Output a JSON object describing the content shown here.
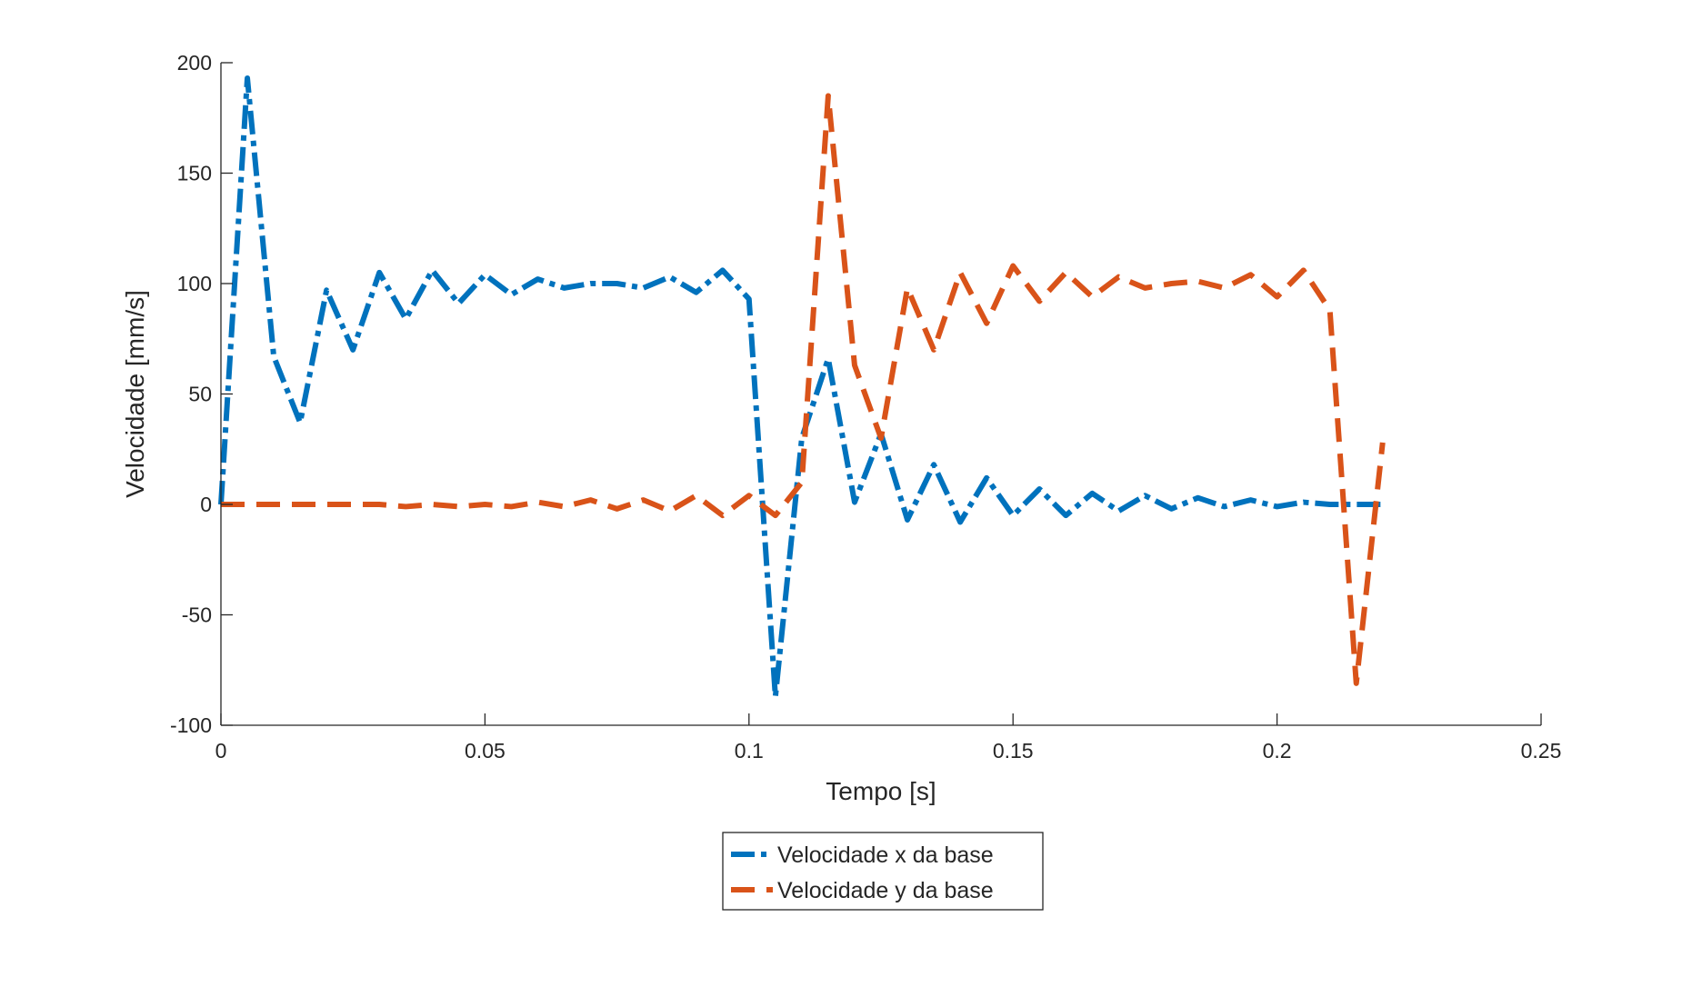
{
  "chart_data": {
    "type": "line",
    "xlabel": "Tempo [s]",
    "ylabel": "Velocidade [mm/s]",
    "xlim": [
      0,
      0.25
    ],
    "ylim": [
      -100,
      200
    ],
    "xticks": [
      0,
      0.05,
      0.1,
      0.15,
      0.2,
      0.25
    ],
    "xtick_labels": [
      "0",
      "0.05",
      "0.1",
      "0.15",
      "0.2",
      "0.25"
    ],
    "yticks": [
      -100,
      -50,
      0,
      50,
      100,
      150,
      200
    ],
    "ytick_labels": [
      "-100",
      "-50",
      "0",
      "50",
      "100",
      "150",
      "200"
    ],
    "grid": false,
    "legend_position": "bottom-center-outside",
    "series": [
      {
        "name": "Velocidade x da base",
        "color": "#0072BD",
        "line_style": "dash-dot",
        "x": [
          0,
          0.005,
          0.01,
          0.015,
          0.02,
          0.025,
          0.03,
          0.035,
          0.04,
          0.045,
          0.05,
          0.055,
          0.06,
          0.065,
          0.07,
          0.075,
          0.08,
          0.085,
          0.09,
          0.095,
          0.1,
          0.105,
          0.11,
          0.115,
          0.12,
          0.125,
          0.13,
          0.135,
          0.14,
          0.145,
          0.15,
          0.155,
          0.16,
          0.165,
          0.17,
          0.175,
          0.18,
          0.185,
          0.19,
          0.195,
          0.2,
          0.205,
          0.21,
          0.215,
          0.22
        ],
        "y": [
          0,
          193,
          67,
          37,
          97,
          70,
          105,
          84,
          106,
          91,
          104,
          95,
          102,
          98,
          100,
          100,
          98,
          103,
          96,
          106,
          93,
          -87,
          30,
          66,
          1,
          32,
          -7,
          18,
          -8,
          12,
          -5,
          7,
          -5,
          5,
          -3,
          4,
          -2,
          3,
          -1,
          2,
          -1,
          1,
          0,
          0,
          0
        ]
      },
      {
        "name": "Velocidade y da base",
        "color": "#D95319",
        "line_style": "dashed",
        "x": [
          0,
          0.005,
          0.01,
          0.015,
          0.02,
          0.025,
          0.03,
          0.035,
          0.04,
          0.045,
          0.05,
          0.055,
          0.06,
          0.065,
          0.07,
          0.075,
          0.08,
          0.085,
          0.09,
          0.095,
          0.1,
          0.105,
          0.11,
          0.115,
          0.12,
          0.125,
          0.13,
          0.135,
          0.14,
          0.145,
          0.15,
          0.155,
          0.16,
          0.165,
          0.17,
          0.175,
          0.18,
          0.185,
          0.19,
          0.195,
          0.2,
          0.205,
          0.21,
          0.215,
          0.22
        ],
        "y": [
          0,
          0,
          0,
          0,
          0,
          0,
          0,
          -1,
          0,
          -1,
          0,
          -1,
          1,
          -1,
          2,
          -2,
          2,
          -3,
          4,
          -5,
          4,
          -5,
          10,
          185,
          63,
          30,
          98,
          70,
          105,
          82,
          108,
          92,
          105,
          94,
          103,
          98,
          100,
          101,
          98,
          104,
          94,
          106,
          88,
          -81,
          28
        ]
      }
    ]
  }
}
